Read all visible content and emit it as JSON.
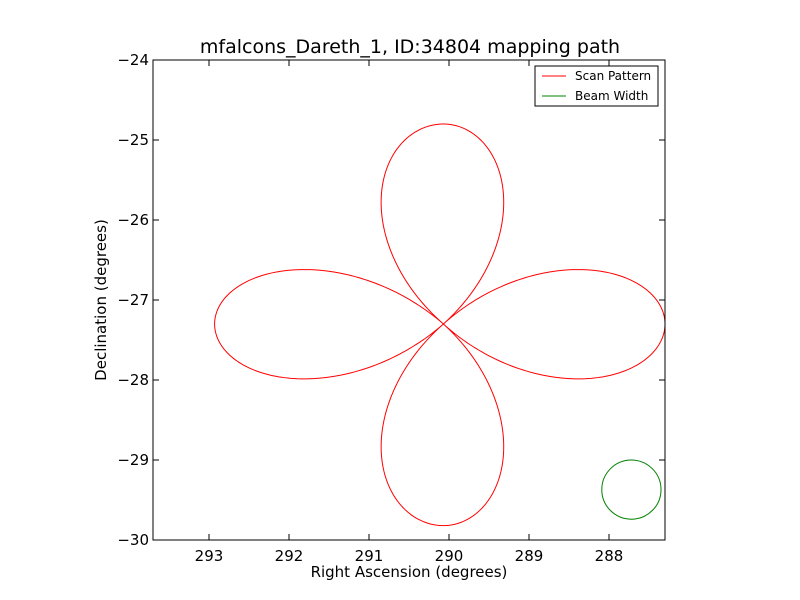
{
  "chart_data": {
    "type": "line",
    "title": "mfalcons_Dareth_1, ID:34804 mapping path",
    "xlabel": "Right Ascension (degrees)",
    "ylabel": "Declination (degrees)",
    "xlim": [
      293.7,
      287.3
    ],
    "ylim": [
      -30,
      -24
    ],
    "x_inverted": true,
    "xticks": [
      293,
      292,
      291,
      290,
      289,
      288
    ],
    "yticks": [
      -30,
      -29,
      -28,
      -27,
      -26,
      -25,
      -24
    ],
    "xtick_labels": [
      "293",
      "292",
      "291",
      "290",
      "289",
      "288"
    ],
    "ytick_labels": [
      "−30",
      "−29",
      "−28",
      "−27",
      "−26",
      "−25",
      "−24"
    ],
    "grid": false,
    "legend_position": "top-right",
    "series": [
      {
        "name": "Scan Pattern",
        "color": "#ff0000",
        "shape": "four-petal rose",
        "center": [
          290.07,
          -27.3
        ],
        "x_range": [
          287.3,
          292.93
        ],
        "y_range": [
          -29.82,
          -24.8
        ]
      },
      {
        "name": "Beam Width",
        "color": "#008000",
        "shape": "circle",
        "center": [
          287.72,
          -29.37
        ],
        "radius_ra": 0.37,
        "radius_dec": 0.37
      }
    ]
  }
}
